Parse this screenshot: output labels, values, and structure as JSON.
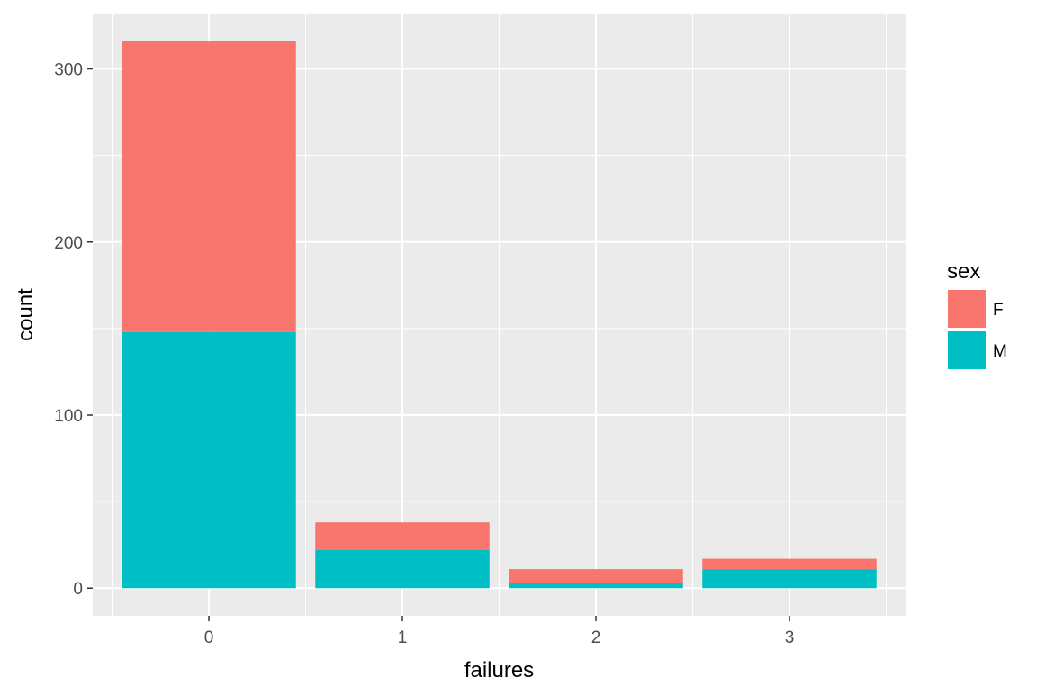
{
  "chart_data": {
    "type": "bar",
    "stacked": true,
    "title": "",
    "xlabel": "failures",
    "ylabel": "count",
    "categories": [
      "0",
      "1",
      "2",
      "3"
    ],
    "series": [
      {
        "name": "F",
        "color": "#F8766D",
        "values": [
          168,
          16,
          8,
          6
        ]
      },
      {
        "name": "M",
        "color": "#00BFC4",
        "values": [
          148,
          22,
          3,
          11
        ]
      }
    ],
    "ylim": [
      -16,
      332
    ],
    "yticks": [
      0,
      100,
      200,
      300
    ],
    "ytick_labels": [
      "0",
      "100",
      "200",
      "300"
    ],
    "legend": {
      "title": "sex",
      "position": "right",
      "entries": [
        "F",
        "M"
      ]
    },
    "grid": true
  }
}
